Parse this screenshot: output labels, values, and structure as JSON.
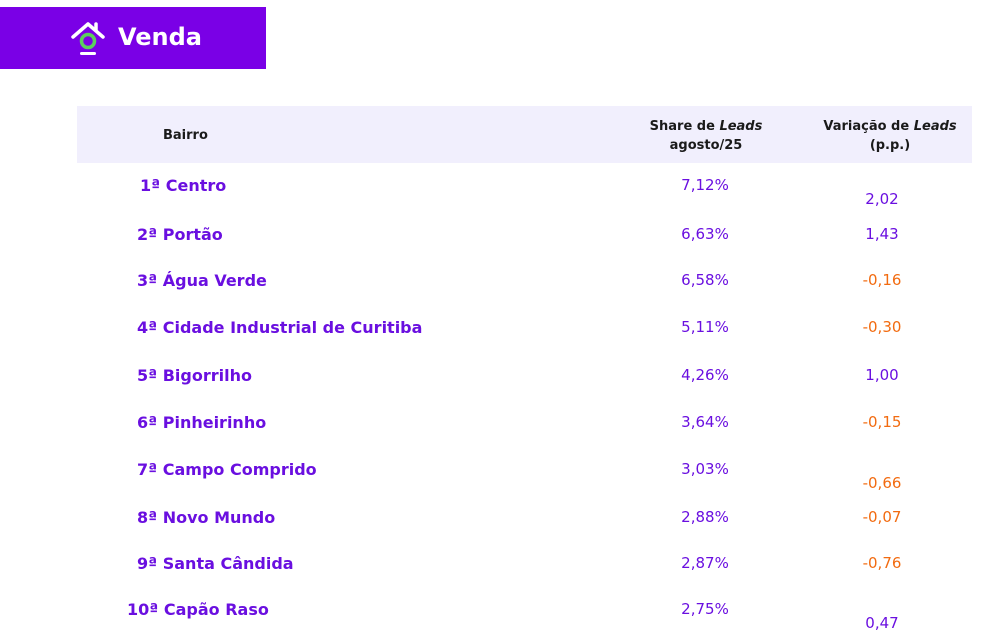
{
  "banner": {
    "title": "Venda",
    "background": "#7a00e6",
    "icon": "house-icon"
  },
  "table": {
    "header": {
      "bairro": "Bairro",
      "share_line1_prefix": "Share de ",
      "share_line1_em": "Leads",
      "share_line2": "agosto/25",
      "var_line1_prefix": "Variação de ",
      "var_line1_em": "Leads",
      "var_line2": "(p.p.)"
    },
    "rows": [
      {
        "rank": "1ª",
        "bairro": "Centro",
        "share": "7,12%",
        "variation": "2,02"
      },
      {
        "rank": "2ª",
        "bairro": "Portão",
        "share": "6,63%",
        "variation": "1,43"
      },
      {
        "rank": "3ª",
        "bairro": "Água Verde",
        "share": "6,58%",
        "variation": "-0,16"
      },
      {
        "rank": "4ª",
        "bairro": "Cidade Industrial de Curitiba",
        "share": "5,11%",
        "variation": "-0,30"
      },
      {
        "rank": "5ª",
        "bairro": "Bigorrilho",
        "share": "4,26%",
        "variation": "1,00"
      },
      {
        "rank": "6ª",
        "bairro": "Pinheirinho",
        "share": "3,64%",
        "variation": "-0,15"
      },
      {
        "rank": "7ª",
        "bairro": "Campo Comprido",
        "share": "3,03%",
        "variation": "-0,66"
      },
      {
        "rank": "8ª",
        "bairro": "Novo Mundo",
        "share": "2,88%",
        "variation": "-0,07"
      },
      {
        "rank": "9ª",
        "bairro": "Santa Cândida",
        "share": "2,87%",
        "variation": "-0,76"
      },
      {
        "rank": "10ª",
        "bairro": "Capão Raso",
        "share": "2,75%",
        "variation": "0,47"
      }
    ],
    "colors": {
      "accent": "#6a0fe0",
      "negative": "#f26b10",
      "header_bg": "#f1effd"
    }
  }
}
